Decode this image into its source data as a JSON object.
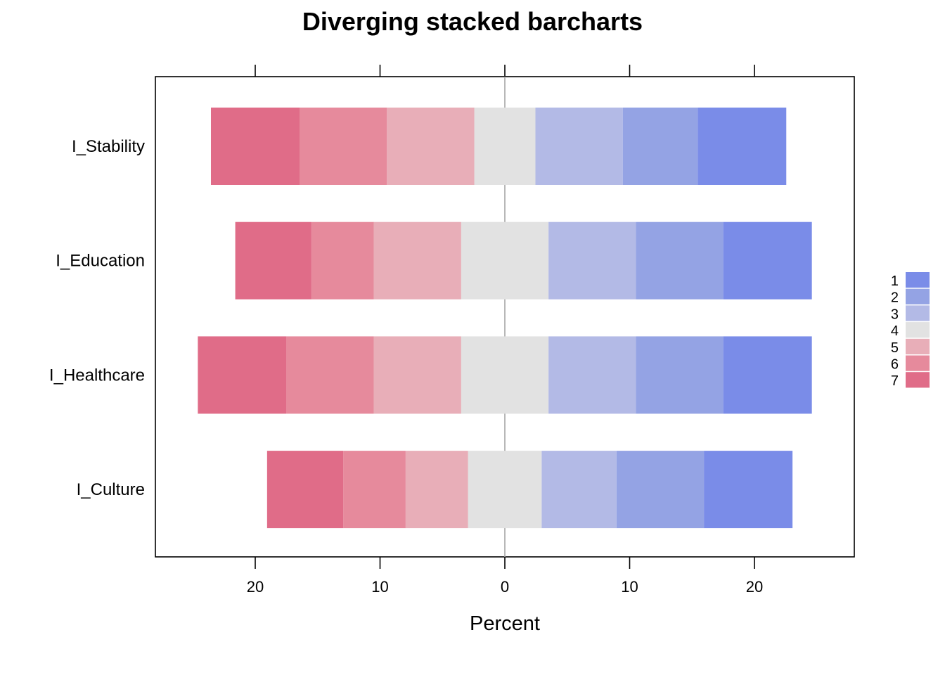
{
  "chart_data": {
    "type": "bar",
    "title": "Diverging stacked barcharts",
    "xlabel": "Percent",
    "ylabel": "",
    "orientation": "horizontal",
    "xlim": [
      -28,
      28
    ],
    "x_ticks": [
      -20,
      -10,
      0,
      10,
      20
    ],
    "x_tick_labels": [
      "20",
      "10",
      "0",
      "10",
      "20"
    ],
    "categories": [
      "I_Stability",
      "I_Education",
      "I_Healthcare",
      "I_Culture"
    ],
    "levels": [
      "1",
      "2",
      "3",
      "4",
      "5",
      "6",
      "7"
    ],
    "colors": [
      "#7A8CE8",
      "#94A3E4",
      "#B3BAE6",
      "#E2E2E2",
      "#E8AEB8",
      "#E68A9C",
      "#E06C88"
    ],
    "series": [
      {
        "name": "1",
        "values": [
          7.1,
          7.1,
          7.1,
          7.1
        ]
      },
      {
        "name": "2",
        "values": [
          6.0,
          7.0,
          7.0,
          7.0
        ]
      },
      {
        "name": "3",
        "values": [
          7.0,
          7.0,
          7.0,
          6.0
        ]
      },
      {
        "name": "4",
        "values": [
          4.9,
          7.0,
          7.0,
          5.9
        ]
      },
      {
        "name": "5",
        "values": [
          7.0,
          7.0,
          7.0,
          5.0
        ]
      },
      {
        "name": "6",
        "values": [
          7.0,
          5.0,
          7.0,
          5.0
        ]
      },
      {
        "name": "7",
        "values": [
          7.1,
          6.1,
          7.1,
          6.1
        ]
      }
    ],
    "legend_position": "right",
    "grid": false,
    "zero_line": true
  }
}
